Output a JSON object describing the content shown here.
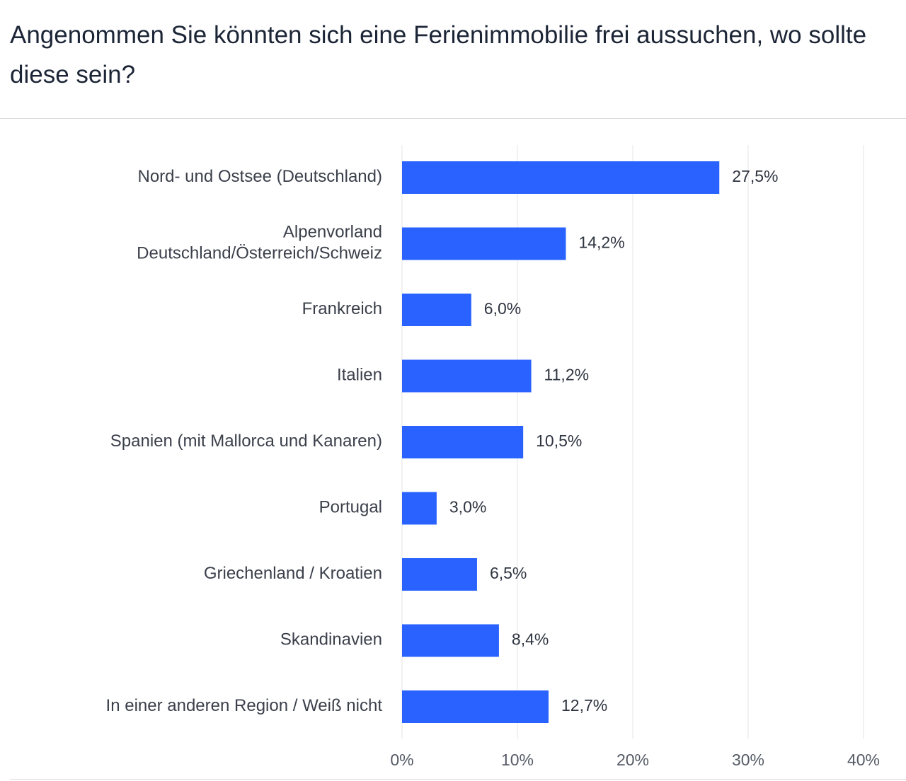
{
  "title": "Angenommen Sie könnten sich eine Ferienimmobilie frei aussuchen, wo sollte diese sein?",
  "chart_data": {
    "type": "bar",
    "orientation": "horizontal",
    "title": "Angenommen Sie könnten sich eine Ferienimmobilie frei aussuchen, wo sollte diese sein?",
    "categories": [
      [
        "Nord- und Ostsee (Deutschland)"
      ],
      [
        "Alpenvorland",
        "Deutschland/Österreich/Schweiz"
      ],
      [
        "Frankreich"
      ],
      [
        "Italien"
      ],
      [
        "Spanien (mit Mallorca und Kanaren)"
      ],
      [
        "Portugal"
      ],
      [
        "Griechenland / Kroatien"
      ],
      [
        "Skandinavien"
      ],
      [
        "In einer anderen Region / Weiß nicht"
      ]
    ],
    "values": [
      27.5,
      14.2,
      6.0,
      11.2,
      10.5,
      3.0,
      6.5,
      8.4,
      12.7
    ],
    "value_labels": [
      "27,5%",
      "14,2%",
      "6,0%",
      "11,2%",
      "10,5%",
      "3,0%",
      "6,5%",
      "8,4%",
      "12,7%"
    ],
    "xlim": [
      0,
      40
    ],
    "x_ticks": [
      0,
      10,
      20,
      30,
      40
    ],
    "x_tick_labels": [
      "0%",
      "10%",
      "20%",
      "30%",
      "40%"
    ],
    "xlabel": "",
    "ylabel": "",
    "grid": "vertical",
    "bar_color": "#2962ff",
    "grid_color": "#e6e6e6"
  }
}
